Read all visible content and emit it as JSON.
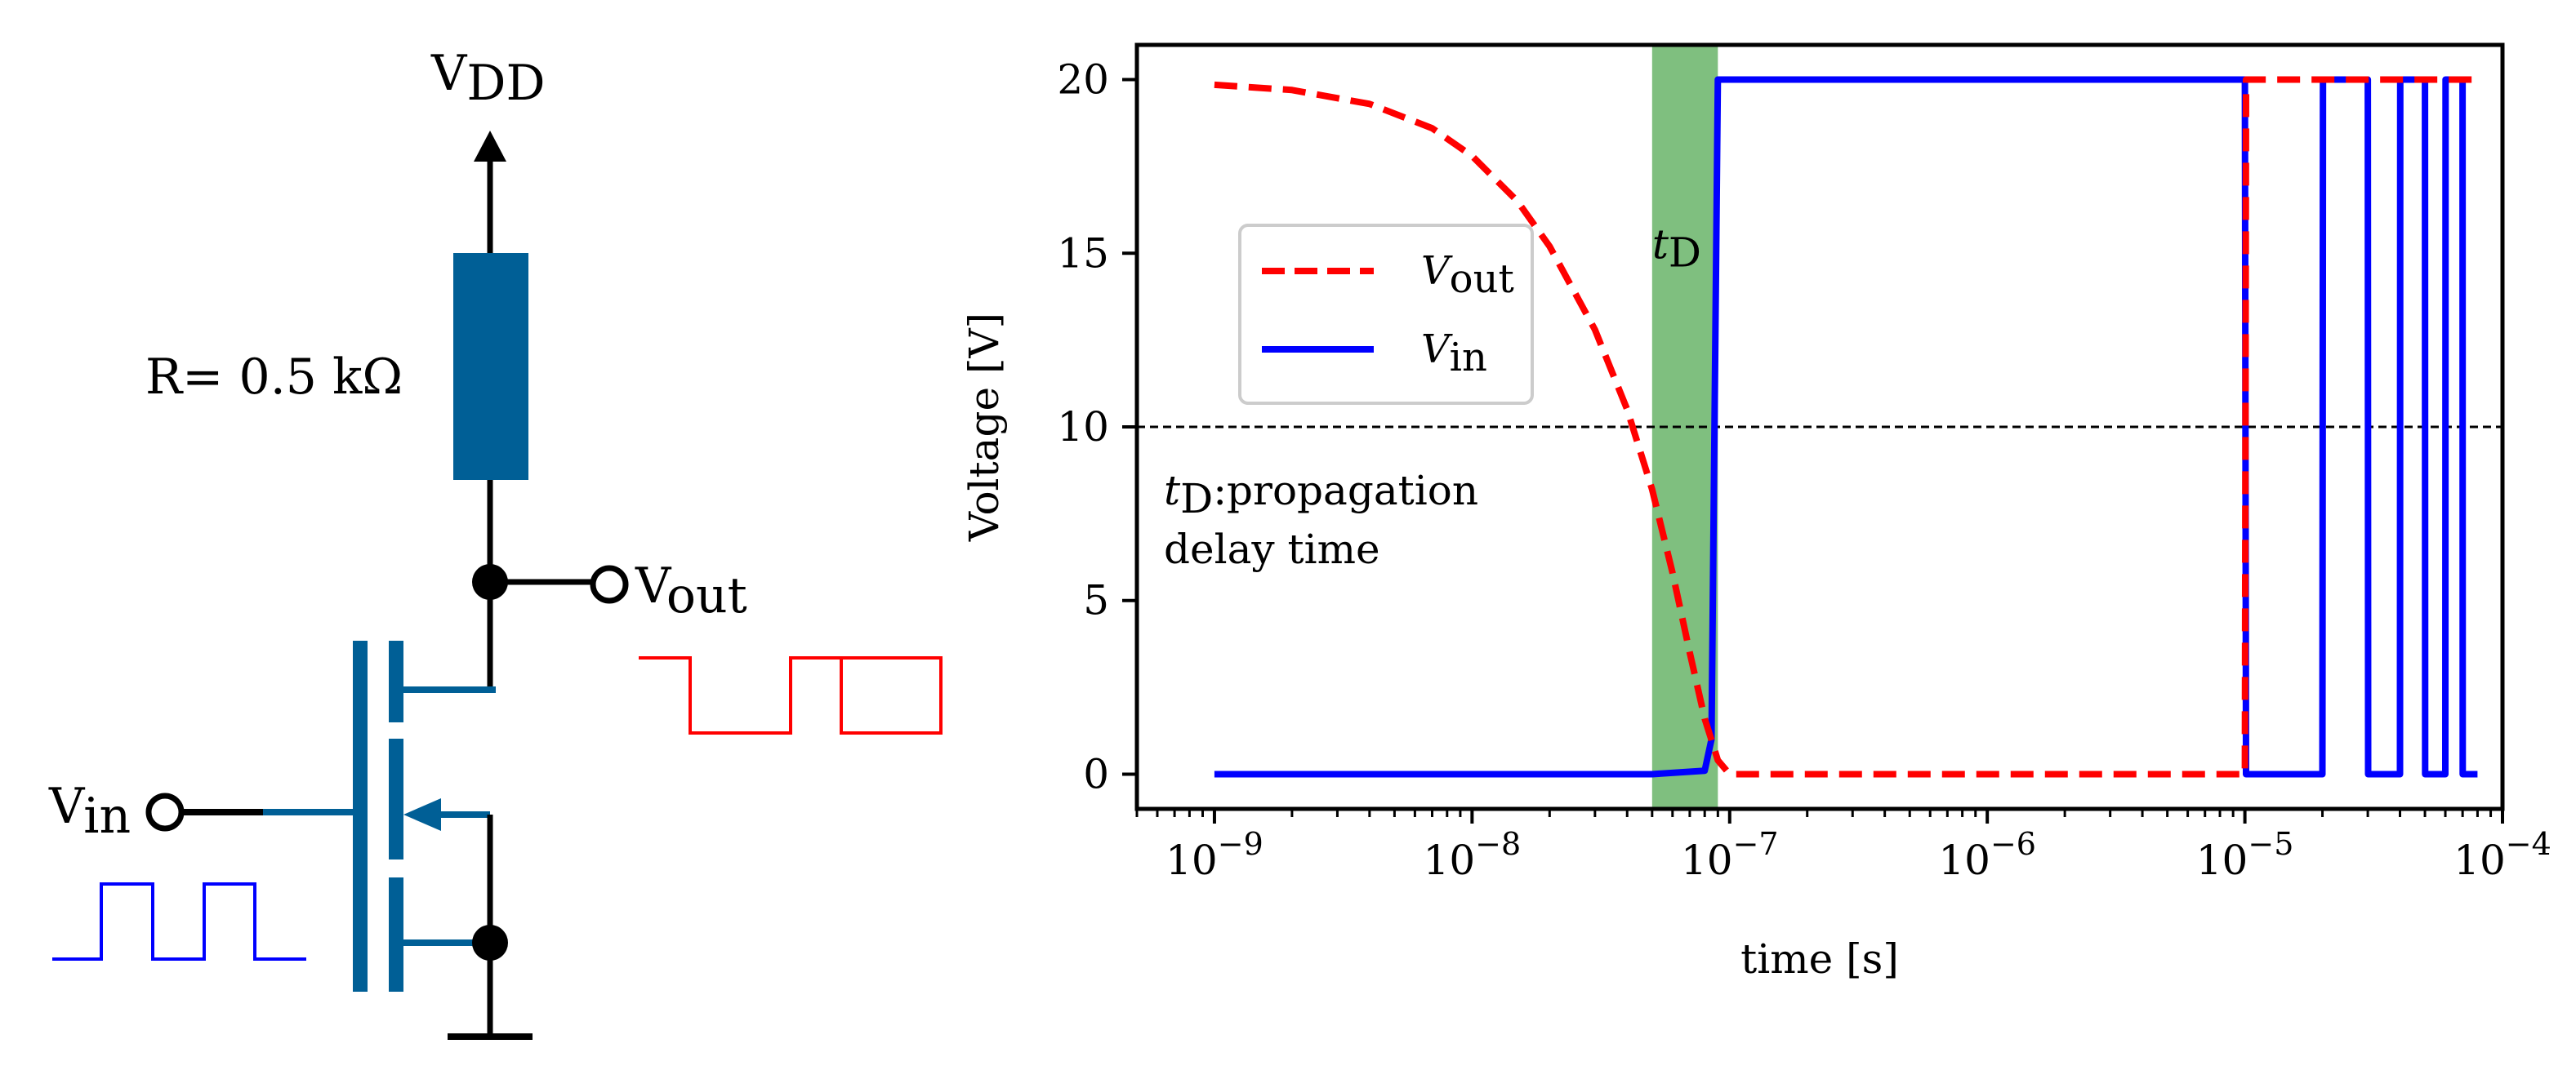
{
  "circuit": {
    "vdd_label": "V",
    "vdd_sub": "DD",
    "resistor_label": "R= 0.5 kΩ",
    "vout_label": "V",
    "vout_sub": "out",
    "vin_label": "V",
    "vin_sub": "in",
    "colors": {
      "component": "#005f96",
      "input_wave": "#0000ff",
      "output_wave": "#ff0000"
    }
  },
  "chart_data": {
    "type": "line",
    "title": "",
    "xlabel": "time [s]",
    "ylabel": "Voltage [V]",
    "x_scale": "log",
    "xlim": [
      5e-10,
      0.0001
    ],
    "ylim": [
      -1,
      21
    ],
    "xticks": [
      {
        "value": 1e-09,
        "base": "10",
        "exp": "−9"
      },
      {
        "value": 1e-08,
        "base": "10",
        "exp": "−8"
      },
      {
        "value": 1e-07,
        "base": "10",
        "exp": "−7"
      },
      {
        "value": 1e-06,
        "base": "10",
        "exp": "−6"
      },
      {
        "value": 1e-05,
        "base": "10",
        "exp": "−5"
      },
      {
        "value": 0.0001,
        "base": "10",
        "exp": "−4"
      }
    ],
    "yticks": [
      0,
      5,
      10,
      15,
      20
    ],
    "threshold_line": {
      "y": 10,
      "style": "dashed",
      "color": "#000000"
    },
    "shaded_region": {
      "x0": 5e-08,
      "x1": 9e-08,
      "color": "#7fbf7f",
      "label": "t",
      "label_sub": "D"
    },
    "annotation": {
      "line1_t": "t",
      "line1_sub": "D",
      "line1_rest": ":propagation",
      "line2": "delay time"
    },
    "legend_position": "upper-left",
    "series": [
      {
        "name": "V",
        "name_sub": "out",
        "color": "#ff0000",
        "style": "dashed",
        "x": [
          1e-09,
          2e-09,
          4e-09,
          7e-09,
          1e-08,
          1.5e-08,
          2e-08,
          3e-08,
          4e-08,
          5e-08,
          6e-08,
          7e-08,
          8e-08,
          9e-08,
          1e-07,
          1.2e-07,
          2e-07,
          1e-06,
          1e-05,
          1.01e-05,
          1.5e-05,
          2e-05,
          2.01e-05,
          3e-05,
          3.01e-05,
          4e-05,
          4.01e-05,
          5e-05,
          5.01e-05,
          6e-05,
          6.01e-05,
          7e-05,
          8e-05
        ],
        "y": [
          19.85,
          19.7,
          19.3,
          18.6,
          17.8,
          16.5,
          15.2,
          12.8,
          10.5,
          8.2,
          5.8,
          3.5,
          1.6,
          0.4,
          0.0,
          0.0,
          0.0,
          0.0,
          0.0,
          20.0,
          20.0,
          20.0,
          20.0,
          20.0,
          20.0,
          20.0,
          20.0,
          20.0,
          20.0,
          20.0,
          20.0,
          20.0,
          20.0
        ]
      },
      {
        "name": "V",
        "name_sub": "in",
        "color": "#0000ff",
        "style": "solid",
        "x": [
          1e-09,
          5e-08,
          8e-08,
          8.5e-08,
          9e-08,
          9.2e-08,
          1e-06,
          1e-05,
          1.01e-05,
          2e-05,
          2.01e-05,
          3e-05,
          3.01e-05,
          4e-05,
          4.01e-05,
          5e-05,
          5.01e-05,
          6e-05,
          6.01e-05,
          7e-05,
          7.01e-05,
          8e-05
        ],
        "y": [
          0.0,
          0.0,
          0.1,
          1.0,
          20.0,
          20.0,
          20.0,
          20.0,
          0.0,
          0.0,
          20.0,
          20.0,
          0.0,
          0.0,
          20.0,
          20.0,
          0.0,
          0.0,
          20.0,
          20.0,
          0.0,
          0.0
        ]
      }
    ]
  }
}
